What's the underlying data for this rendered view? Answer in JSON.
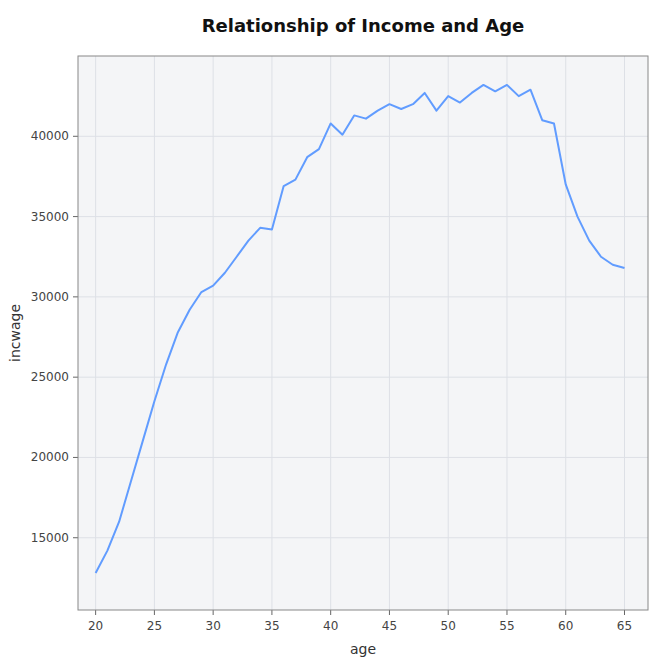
{
  "chart_data": {
    "type": "line",
    "title": "Relationship of Income and Age",
    "xlabel": "age",
    "ylabel": "incwage",
    "x": [
      20,
      21,
      22,
      23,
      24,
      25,
      26,
      27,
      28,
      29,
      30,
      31,
      32,
      33,
      34,
      35,
      36,
      37,
      38,
      39,
      40,
      41,
      42,
      43,
      44,
      45,
      46,
      47,
      48,
      49,
      50,
      51,
      52,
      53,
      54,
      55,
      56,
      57,
      58,
      59,
      60,
      61,
      62,
      63,
      64,
      65
    ],
    "values": [
      12800,
      14200,
      16000,
      18500,
      21000,
      23500,
      25800,
      27800,
      29200,
      30300,
      30700,
      31500,
      32500,
      33500,
      34300,
      34200,
      36900,
      37300,
      38700,
      39200,
      40800,
      40100,
      41300,
      41100,
      41600,
      42000,
      41700,
      42000,
      42700,
      41600,
      42500,
      42100,
      42700,
      43200,
      42800,
      43200,
      42500,
      42900,
      41000,
      40800,
      37000,
      35000,
      33500,
      32500,
      32000,
      31800
    ],
    "color": "#619cff",
    "xlim": [
      18.5,
      67
    ],
    "ylim": [
      10500,
      45000
    ],
    "xticks": [
      20,
      25,
      30,
      35,
      40,
      45,
      50,
      55,
      60,
      65
    ],
    "yticks": [
      15000,
      20000,
      25000,
      30000,
      35000,
      40000
    ],
    "grid": true
  }
}
